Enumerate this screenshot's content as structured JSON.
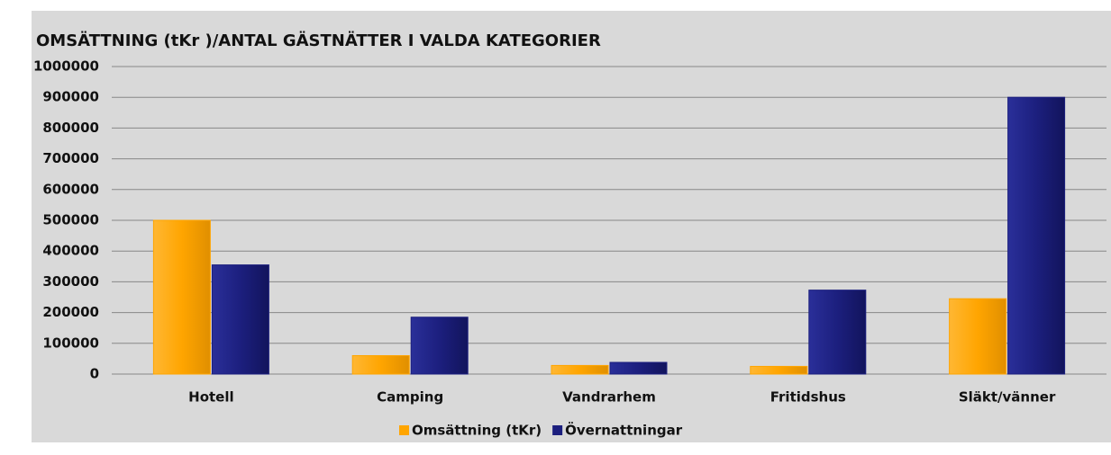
{
  "chart_data": {
    "type": "bar",
    "title": "OMSÄTTNING (tKr )/ANTAL GÄSTNÄTTER I VALDA KATEGORIER",
    "categories": [
      "Hotell",
      "Camping",
      "Vandrarhem",
      "Fritidshus",
      "Släkt/vänner"
    ],
    "series": [
      {
        "name": "Omsättning (tKr)",
        "color": "#ffa500",
        "values": [
          500000,
          60000,
          28000,
          25000,
          245000
        ]
      },
      {
        "name": "Övernattningar",
        "color": "#1c1f7e",
        "values": [
          355000,
          185000,
          38000,
          273000,
          900000
        ]
      }
    ],
    "ylim": [
      0,
      1000000
    ],
    "yticks": [
      0,
      100000,
      200000,
      300000,
      400000,
      500000,
      600000,
      700000,
      800000,
      900000,
      1000000
    ],
    "grid": true,
    "legend": "bottom"
  }
}
